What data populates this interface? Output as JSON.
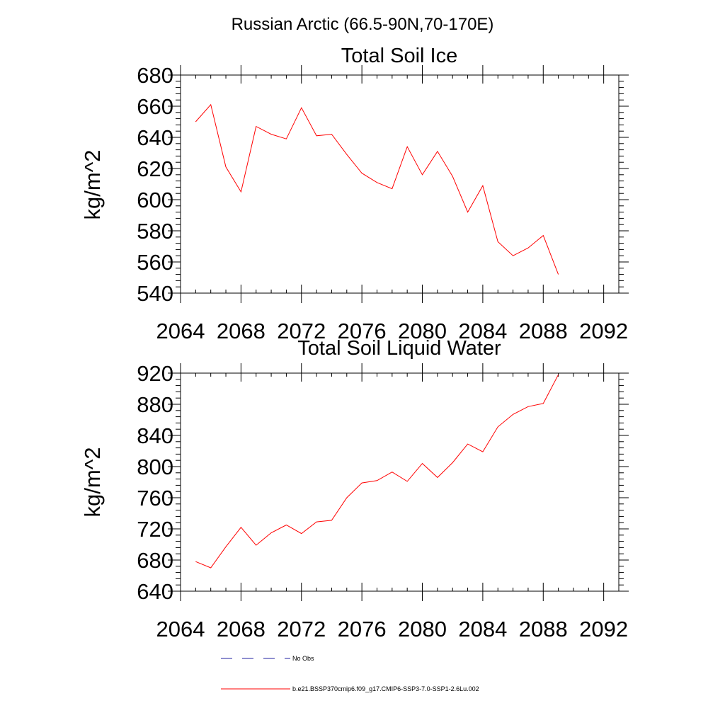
{
  "figure": {
    "title": "Russian Arctic (66.5-90N,70-170E)"
  },
  "chart_data": [
    {
      "type": "line",
      "title": "Total Soil Ice",
      "xlabel": "",
      "ylabel": "kg/m^2",
      "xlim": [
        2064,
        2093
      ],
      "ylim": [
        540,
        680
      ],
      "xticks": [
        2064,
        2068,
        2072,
        2076,
        2080,
        2084,
        2088,
        2092
      ],
      "yticks": [
        540,
        560,
        580,
        600,
        620,
        640,
        660,
        680
      ],
      "series": [
        {
          "name": "b.e21.BSSP370cmip6.f09_g17.CMIP6-SSP3-7.0-SSP1-2.6Lu.002",
          "color": "#ff0000",
          "x": [
            2065,
            2066,
            2067,
            2068,
            2069,
            2070,
            2071,
            2072,
            2073,
            2074,
            2075,
            2076,
            2077,
            2078,
            2079,
            2080,
            2081,
            2082,
            2083,
            2084,
            2085,
            2086,
            2087,
            2088,
            2089
          ],
          "values": [
            650,
            661,
            621,
            605,
            647,
            642,
            639,
            659,
            641,
            642,
            629,
            617,
            611,
            607,
            634,
            616,
            631,
            615,
            592,
            609,
            573,
            564,
            569,
            577,
            552
          ]
        }
      ]
    },
    {
      "type": "line",
      "title": "Total Soil Liquid Water",
      "xlabel": "",
      "ylabel": "kg/m^2",
      "xlim": [
        2064,
        2093
      ],
      "ylim": [
        640,
        920
      ],
      "xticks": [
        2064,
        2068,
        2072,
        2076,
        2080,
        2084,
        2088,
        2092
      ],
      "yticks": [
        640,
        680,
        720,
        760,
        800,
        840,
        880,
        920
      ],
      "series": [
        {
          "name": "b.e21.BSSP370cmip6.f09_g17.CMIP6-SSP3-7.0-SSP1-2.6Lu.002",
          "color": "#ff0000",
          "x": [
            2065,
            2066,
            2067,
            2068,
            2069,
            2070,
            2071,
            2072,
            2073,
            2074,
            2075,
            2076,
            2077,
            2078,
            2079,
            2080,
            2081,
            2082,
            2083,
            2084,
            2085,
            2086,
            2087,
            2088,
            2089
          ],
          "values": [
            678,
            670,
            697,
            722,
            699,
            715,
            725,
            714,
            729,
            731,
            760,
            779,
            782,
            793,
            781,
            804,
            786,
            805,
            829,
            819,
            851,
            867,
            877,
            881,
            918
          ]
        }
      ]
    }
  ],
  "legend": {
    "placement": "bottom",
    "entries": [
      {
        "label": "No Obs",
        "color": "#2020a0",
        "style": "dashed"
      },
      {
        "label": "b.e21.BSSP370cmip6.f09_g17.CMIP6-SSP3-7.0-SSP1-2.6Lu.002",
        "color": "#ff0000",
        "style": "solid"
      }
    ]
  }
}
